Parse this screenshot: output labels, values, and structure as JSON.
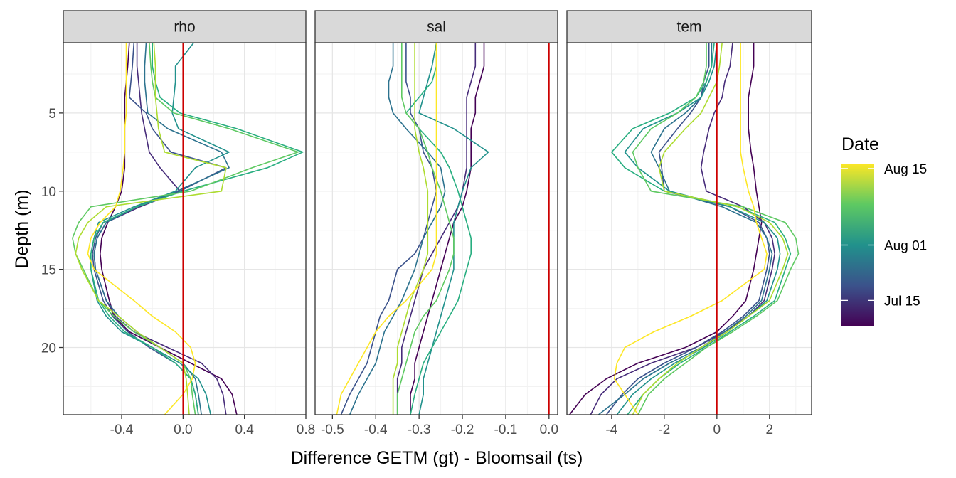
{
  "chart_data": {
    "type": "line",
    "xlabel": "Difference GETM (gt) - Bloomsail (ts)",
    "ylabel": "Depth (m)",
    "ylim": [
      0.5,
      24.3
    ],
    "y_reversed": true,
    "y_ticks": [
      5,
      10,
      15,
      20
    ],
    "legend": {
      "title": "Date",
      "position": "right",
      "labels": [
        "Aug 15",
        "Aug 01",
        "Jul 15"
      ],
      "label_fractions": [
        0.97,
        0.5,
        0.16
      ],
      "colormap": [
        "#440154",
        "#3b528b",
        "#21918c",
        "#5ec962",
        "#fde725"
      ]
    },
    "reference_line": {
      "x": 0,
      "color": "#cc0000"
    },
    "grid": true,
    "depths": [
      0.5,
      2,
      3,
      4,
      5,
      6,
      7.5,
      8.5,
      10,
      11,
      12,
      13,
      14,
      15,
      17,
      18,
      19,
      20,
      21,
      22,
      23,
      24.3
    ],
    "facets": [
      {
        "title": "rho",
        "xlim": [
          -0.78,
          0.8
        ],
        "x_ticks": [
          -0.4,
          0,
          0.4,
          0.8
        ],
        "x_tick_labels": [
          "-0.4",
          "0.0",
          "0.4",
          "0.8"
        ],
        "series": [
          {
            "color": "#440154",
            "values": [
              -0.35,
              -0.36,
              -0.37,
              -0.38,
              -0.38,
              -0.38,
              -0.38,
              -0.38,
              -0.4,
              -0.44,
              -0.49,
              -0.53,
              -0.54,
              -0.53,
              -0.48,
              -0.45,
              -0.35,
              -0.15,
              0.05,
              0.25,
              0.32,
              0.35
            ]
          },
          {
            "color": "#472c7a",
            "values": [
              -0.3,
              -0.3,
              -0.29,
              -0.28,
              -0.27,
              -0.25,
              -0.22,
              -0.15,
              -0.02,
              -0.28,
              -0.5,
              -0.56,
              -0.58,
              -0.57,
              -0.5,
              -0.44,
              -0.32,
              -0.1,
              0.12,
              0.22,
              0.26,
              0.28
            ]
          },
          {
            "color": "#3b528b",
            "values": [
              -0.32,
              -0.33,
              -0.34,
              -0.35,
              -0.24,
              -0.2,
              -0.08,
              0.28,
              -0.02,
              -0.3,
              -0.52,
              -0.57,
              -0.59,
              -0.58,
              -0.52,
              -0.46,
              -0.36,
              -0.22,
              -0.05,
              0.05,
              0.08,
              0.1
            ]
          },
          {
            "color": "#2c728e",
            "values": [
              -0.24,
              -0.25,
              -0.25,
              -0.24,
              -0.23,
              -0.1,
              0.25,
              0.3,
              -0.04,
              -0.3,
              -0.5,
              -0.56,
              -0.58,
              -0.57,
              -0.5,
              -0.42,
              -0.3,
              -0.15,
              0.0,
              0.08,
              0.1,
              0.12
            ]
          },
          {
            "color": "#21918c",
            "values": [
              0.07,
              -0.05,
              -0.05,
              -0.06,
              -0.07,
              -0.03,
              0.3,
              0.08,
              -0.05,
              -0.32,
              -0.55,
              -0.58,
              -0.6,
              -0.6,
              -0.56,
              -0.5,
              -0.4,
              -0.2,
              -0.02,
              0.1,
              0.15,
              0.18
            ]
          },
          {
            "color": "#28ae80",
            "values": [
              -0.2,
              -0.2,
              -0.18,
              -0.15,
              -0.02,
              0.35,
              0.78,
              0.55,
              0.0,
              -0.3,
              -0.52,
              -0.58,
              -0.6,
              -0.6,
              -0.55,
              -0.48,
              -0.38,
              -0.2,
              -0.05,
              0.05,
              0.08,
              0.1
            ]
          },
          {
            "color": "#5ec962",
            "values": [
              -0.22,
              -0.21,
              -0.2,
              -0.18,
              -0.06,
              0.3,
              0.75,
              0.45,
              0.05,
              -0.6,
              -0.68,
              -0.72,
              -0.7,
              -0.65,
              -0.55,
              -0.45,
              -0.32,
              -0.15,
              0.0,
              0.05,
              0.06,
              0.08
            ]
          },
          {
            "color": "#addc30",
            "values": [
              -0.19,
              -0.18,
              -0.18,
              -0.18,
              -0.17,
              -0.16,
              -0.12,
              0.28,
              0.25,
              -0.5,
              -0.62,
              -0.68,
              -0.7,
              -0.66,
              -0.55,
              -0.42,
              -0.3,
              -0.15,
              0.0,
              0.02,
              0.03,
              0.04
            ]
          },
          {
            "color": "#fde725",
            "values": [
              -0.37,
              -0.37,
              -0.37,
              -0.37,
              -0.37,
              -0.38,
              -0.38,
              -0.39,
              -0.41,
              -0.44,
              -0.54,
              -0.6,
              -0.62,
              -0.58,
              -0.32,
              -0.2,
              -0.05,
              0.05,
              0.08,
              0.06,
              0.0,
              -0.12
            ]
          }
        ]
      },
      {
        "title": "sal",
        "xlim": [
          -0.54,
          0.02
        ],
        "x_ticks": [
          -0.5,
          -0.4,
          -0.3,
          -0.2,
          -0.1,
          0
        ],
        "x_tick_labels": [
          "-0.5",
          "-0.4",
          "-0.3",
          "-0.2",
          "-0.1",
          "0.0"
        ],
        "series": [
          {
            "color": "#440154",
            "values": [
              -0.15,
              -0.15,
              -0.16,
              -0.17,
              -0.17,
              -0.18,
              -0.18,
              -0.18,
              -0.19,
              -0.2,
              -0.22,
              -0.23,
              -0.24,
              -0.25,
              -0.27,
              -0.28,
              -0.29,
              -0.3,
              -0.31,
              -0.31,
              -0.32,
              -0.32
            ]
          },
          {
            "color": "#472c7a",
            "values": [
              -0.17,
              -0.17,
              -0.18,
              -0.19,
              -0.19,
              -0.19,
              -0.19,
              -0.19,
              -0.2,
              -0.21,
              -0.23,
              -0.25,
              -0.27,
              -0.29,
              -0.31,
              -0.32,
              -0.33,
              -0.34,
              -0.34,
              -0.35,
              -0.35,
              -0.35
            ]
          },
          {
            "color": "#3b528b",
            "values": [
              -0.33,
              -0.33,
              -0.33,
              -0.32,
              -0.32,
              -0.3,
              -0.29,
              -0.27,
              -0.26,
              -0.27,
              -0.28,
              -0.29,
              -0.31,
              -0.35,
              -0.37,
              -0.39,
              -0.4,
              -0.41,
              -0.42,
              -0.44,
              -0.46,
              -0.48
            ]
          },
          {
            "color": "#2c728e",
            "values": [
              -0.36,
              -0.36,
              -0.37,
              -0.37,
              -0.36,
              -0.33,
              -0.28,
              -0.25,
              -0.24,
              -0.25,
              -0.27,
              -0.29,
              -0.3,
              -0.31,
              -0.34,
              -0.36,
              -0.38,
              -0.39,
              -0.4,
              -0.42,
              -0.44,
              -0.46
            ]
          },
          {
            "color": "#21918c",
            "values": [
              -0.26,
              -0.27,
              -0.28,
              -0.29,
              -0.3,
              -0.22,
              -0.14,
              -0.18,
              -0.2,
              -0.21,
              -0.22,
              -0.22,
              -0.22,
              -0.22,
              -0.24,
              -0.25,
              -0.26,
              -0.27,
              -0.28,
              -0.29,
              -0.29,
              -0.3
            ]
          },
          {
            "color": "#28ae80",
            "values": [
              -0.26,
              -0.26,
              -0.27,
              -0.3,
              -0.33,
              -0.3,
              -0.25,
              -0.23,
              -0.21,
              -0.2,
              -0.19,
              -0.18,
              -0.18,
              -0.19,
              -0.21,
              -0.23,
              -0.25,
              -0.27,
              -0.29,
              -0.3,
              -0.31,
              -0.32
            ]
          },
          {
            "color": "#5ec962",
            "values": [
              -0.34,
              -0.34,
              -0.34,
              -0.34,
              -0.33,
              -0.3,
              -0.28,
              -0.27,
              -0.25,
              -0.24,
              -0.23,
              -0.22,
              -0.22,
              -0.23,
              -0.26,
              -0.29,
              -0.31,
              -0.32,
              -0.33,
              -0.34,
              -0.35,
              -0.35
            ]
          },
          {
            "color": "#addc30",
            "values": [
              -0.31,
              -0.31,
              -0.31,
              -0.31,
              -0.31,
              -0.31,
              -0.3,
              -0.29,
              -0.28,
              -0.28,
              -0.28,
              -0.28,
              -0.28,
              -0.29,
              -0.32,
              -0.33,
              -0.34,
              -0.35,
              -0.35,
              -0.36,
              -0.36,
              -0.36
            ]
          },
          {
            "color": "#fde725",
            "values": [
              -0.26,
              -0.26,
              -0.26,
              -0.26,
              -0.26,
              -0.26,
              -0.26,
              -0.26,
              -0.26,
              -0.26,
              -0.26,
              -0.26,
              -0.26,
              -0.27,
              -0.33,
              -0.37,
              -0.4,
              -0.42,
              -0.44,
              -0.46,
              -0.48,
              -0.49
            ]
          }
        ]
      },
      {
        "title": "tem",
        "xlim": [
          -5.7,
          3.6
        ],
        "x_ticks": [
          -4,
          -2,
          0,
          2
        ],
        "x_tick_labels": [
          "-4",
          "-2",
          "0",
          "2"
        ],
        "series": [
          {
            "color": "#440154",
            "values": [
              1.4,
              1.4,
              1.3,
              1.2,
              1.2,
              1.2,
              1.3,
              1.4,
              1.5,
              1.6,
              1.7,
              1.6,
              1.5,
              1.4,
              1.1,
              0.6,
              0.0,
              -1.2,
              -3.0,
              -4.2,
              -5.0,
              -5.6
            ]
          },
          {
            "color": "#472c7a",
            "values": [
              0.6,
              0.5,
              0.3,
              0.2,
              -0.1,
              -0.3,
              -0.5,
              -0.6,
              -0.4,
              1.0,
              1.8,
              2.1,
              2.2,
              2.1,
              1.8,
              1.2,
              0.3,
              -0.8,
              -2.5,
              -3.8,
              -4.4,
              -4.8
            ]
          },
          {
            "color": "#3b528b",
            "values": [
              -0.3,
              -0.3,
              -0.5,
              -0.6,
              -1.0,
              -1.5,
              -2.2,
              -2.1,
              -2.0,
              0.5,
              1.6,
              1.9,
              2.0,
              1.9,
              1.6,
              1.0,
              0.2,
              -0.8,
              -2.0,
              -3.0,
              -3.6,
              -4.2
            ]
          },
          {
            "color": "#2c728e",
            "values": [
              -0.2,
              -0.2,
              -0.4,
              -0.6,
              -1.2,
              -2.0,
              -2.5,
              -2.2,
              -1.8,
              0.2,
              1.5,
              1.9,
              2.1,
              2.0,
              1.7,
              1.1,
              0.3,
              -0.6,
              -1.8,
              -2.8,
              -3.5,
              -4.5
            ]
          },
          {
            "color": "#21918c",
            "values": [
              0.0,
              -0.1,
              -0.3,
              -0.6,
              -1.5,
              -2.8,
              -3.5,
              -3.0,
              -1.8,
              0.5,
              1.8,
              2.3,
              2.4,
              2.3,
              1.9,
              1.2,
              0.4,
              -0.5,
              -1.6,
              -2.5,
              -3.2,
              -3.8
            ]
          },
          {
            "color": "#28ae80",
            "values": [
              -0.1,
              -0.2,
              -0.4,
              -0.8,
              -1.8,
              -3.2,
              -4.0,
              -3.5,
              -2.0,
              0.8,
              2.2,
              2.6,
              2.8,
              2.6,
              2.2,
              1.4,
              0.5,
              -0.4,
              -1.4,
              -2.2,
              -2.8,
              -3.4
            ]
          },
          {
            "color": "#5ec962",
            "values": [
              -0.4,
              -0.4,
              -0.5,
              -0.8,
              -1.5,
              -2.5,
              -3.2,
              -3.0,
              -2.5,
              1.0,
              2.6,
              3.0,
              3.1,
              2.8,
              2.3,
              1.5,
              0.6,
              -0.4,
              -1.2,
              -2.0,
              -2.6,
              -3.0
            ]
          },
          {
            "color": "#addc30",
            "values": [
              0.2,
              0.1,
              0.0,
              -0.3,
              -0.6,
              -1.2,
              -2.0,
              -2.2,
              -2.0,
              0.8,
              2.0,
              2.5,
              2.7,
              2.5,
              2.0,
              1.2,
              0.4,
              -0.6,
              -1.5,
              -2.2,
              -2.8,
              -3.2
            ]
          },
          {
            "color": "#fde725",
            "values": [
              0.9,
              0.9,
              0.9,
              0.9,
              0.9,
              0.9,
              0.9,
              1.0,
              1.2,
              1.4,
              1.5,
              1.7,
              1.9,
              1.8,
              0.2,
              -1.0,
              -2.4,
              -3.5,
              -3.8,
              -3.9,
              -3.5,
              -3.0
            ]
          }
        ]
      }
    ]
  }
}
